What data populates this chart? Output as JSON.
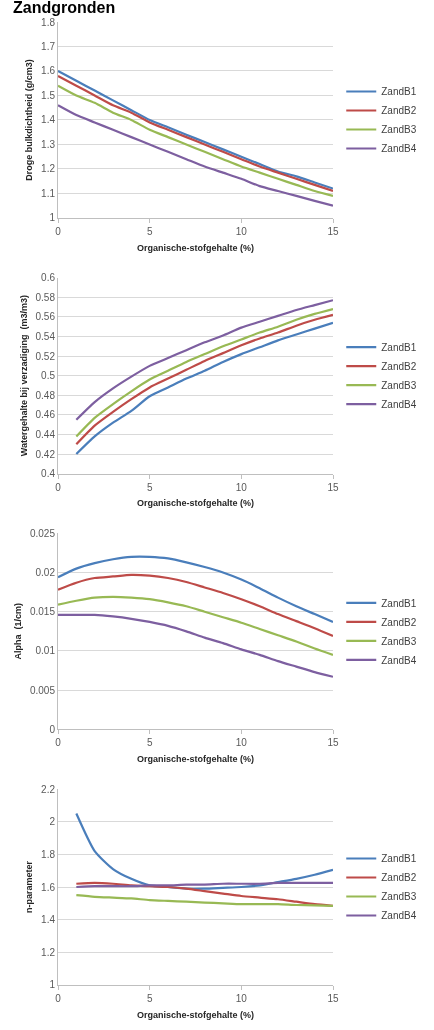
{
  "chart_data": [
    {
      "type": "line",
      "title": "Zandgronden",
      "xlabel": "Organische-stofgehalte (%)",
      "ylabel": "Droge bulkdichtheid (g/cm3)",
      "x": [
        0,
        1,
        2,
        3,
        4,
        5,
        6,
        7,
        8,
        9,
        10,
        11,
        12,
        13,
        14,
        15
      ],
      "xlim": [
        0,
        15
      ],
      "xticks": [
        0,
        5,
        10,
        15
      ],
      "ylim": [
        1,
        1.8
      ],
      "yticks": [
        1,
        1.1,
        1.2,
        1.3,
        1.4,
        1.5,
        1.6,
        1.7,
        1.8
      ],
      "grid": "y",
      "legend": "right",
      "series": [
        {
          "name": "ZandB1",
          "color": "#4a7ebb",
          "values": [
            1.6,
            1.56,
            1.52,
            1.48,
            1.44,
            1.4,
            1.37,
            1.34,
            1.31,
            1.28,
            1.25,
            1.22,
            1.19,
            1.17,
            1.145,
            1.12
          ]
        },
        {
          "name": "ZandB2",
          "color": "#be4b48",
          "values": [
            1.58,
            1.54,
            1.5,
            1.46,
            1.43,
            1.39,
            1.36,
            1.33,
            1.3,
            1.27,
            1.24,
            1.21,
            1.185,
            1.16,
            1.135,
            1.11
          ]
        },
        {
          "name": "ZandB3",
          "color": "#98b954",
          "values": [
            1.54,
            1.5,
            1.47,
            1.43,
            1.4,
            1.36,
            1.33,
            1.3,
            1.27,
            1.24,
            1.21,
            1.185,
            1.16,
            1.135,
            1.11,
            1.09
          ]
        },
        {
          "name": "ZandB4",
          "color": "#7d5fa0",
          "values": [
            1.46,
            1.42,
            1.39,
            1.36,
            1.33,
            1.3,
            1.27,
            1.24,
            1.21,
            1.185,
            1.16,
            1.13,
            1.11,
            1.09,
            1.07,
            1.05
          ]
        }
      ]
    },
    {
      "type": "line",
      "xlabel": "Organische-stofgehalte (%)",
      "ylabel": "Watergehalte bij verzadiging  (m3/m3)",
      "x": [
        1,
        2,
        3,
        4,
        5,
        6,
        7,
        8,
        9,
        10,
        11,
        12,
        13,
        14,
        15
      ],
      "xlim": [
        0,
        15
      ],
      "xticks": [
        0,
        5,
        10,
        15
      ],
      "ylim": [
        0.4,
        0.6
      ],
      "yticks": [
        0.4,
        0.42,
        0.44,
        0.46,
        0.48,
        0.5,
        0.52,
        0.54,
        0.56,
        0.58,
        0.6
      ],
      "grid": "y",
      "legend": "right",
      "series": [
        {
          "name": "ZandB1",
          "color": "#4a7ebb",
          "values": [
            0.42,
            0.438,
            0.452,
            0.464,
            0.479,
            0.488,
            0.497,
            0.505,
            0.514,
            0.522,
            0.529,
            0.536,
            0.542,
            0.548,
            0.554
          ]
        },
        {
          "name": "ZandB2",
          "color": "#be4b48",
          "values": [
            0.43,
            0.449,
            0.463,
            0.476,
            0.488,
            0.497,
            0.506,
            0.515,
            0.523,
            0.531,
            0.538,
            0.544,
            0.551,
            0.557,
            0.562
          ]
        },
        {
          "name": "ZandB3",
          "color": "#98b954",
          "values": [
            0.438,
            0.457,
            0.471,
            0.484,
            0.496,
            0.505,
            0.514,
            0.522,
            0.53,
            0.537,
            0.544,
            0.55,
            0.557,
            0.563,
            0.568
          ]
        },
        {
          "name": "ZandB4",
          "color": "#7d5fa0",
          "values": [
            0.455,
            0.473,
            0.487,
            0.499,
            0.51,
            0.518,
            0.526,
            0.534,
            0.541,
            0.549,
            0.555,
            0.561,
            0.567,
            0.572,
            0.577
          ]
        }
      ]
    },
    {
      "type": "line",
      "xlabel": "Organische-stofgehalte (%)",
      "ylabel": "Alpha  (1/cm)",
      "x": [
        0,
        1,
        2,
        3,
        4,
        5,
        6,
        7,
        8,
        9,
        10,
        11,
        12,
        13,
        14,
        15
      ],
      "xlim": [
        0,
        15
      ],
      "xticks": [
        0,
        5,
        10,
        15
      ],
      "ylim": [
        0,
        0.025
      ],
      "yticks": [
        0,
        0.005,
        0.01,
        0.015,
        0.02,
        0.025
      ],
      "grid": "y",
      "legend": "right",
      "series": [
        {
          "name": "ZandB1",
          "color": "#4a7ebb",
          "values": [
            0.0194,
            0.0205,
            0.0212,
            0.0217,
            0.022,
            0.022,
            0.0218,
            0.0213,
            0.0207,
            0.02,
            0.0191,
            0.018,
            0.0168,
            0.0157,
            0.0147,
            0.0137
          ]
        },
        {
          "name": "ZandB2",
          "color": "#be4b48",
          "values": [
            0.0178,
            0.0187,
            0.0193,
            0.0195,
            0.0197,
            0.0196,
            0.0193,
            0.0188,
            0.0181,
            0.0174,
            0.0166,
            0.0157,
            0.0147,
            0.0138,
            0.0129,
            0.0119
          ]
        },
        {
          "name": "ZandB3",
          "color": "#98b954",
          "values": [
            0.0159,
            0.0164,
            0.0168,
            0.0169,
            0.0168,
            0.0166,
            0.0162,
            0.0157,
            0.015,
            0.0143,
            0.0136,
            0.0128,
            0.012,
            0.0112,
            0.0103,
            0.0095
          ]
        },
        {
          "name": "ZandB4",
          "color": "#7d5fa0",
          "values": [
            0.0146,
            0.0146,
            0.0146,
            0.0144,
            0.0141,
            0.0137,
            0.0132,
            0.0125,
            0.0117,
            0.011,
            0.0102,
            0.0095,
            0.0087,
            0.008,
            0.0073,
            0.0067
          ]
        }
      ]
    },
    {
      "type": "line",
      "xlabel": "Organische-stofgehalte (%)",
      "ylabel": "n-parameter",
      "x": [
        1,
        2,
        3,
        4,
        5,
        6,
        7,
        8,
        9,
        10,
        11,
        12,
        13,
        14,
        15
      ],
      "xlim": [
        0,
        15
      ],
      "xticks": [
        0,
        5,
        10,
        15
      ],
      "ylim": [
        1,
        2.2
      ],
      "yticks": [
        1,
        1.2,
        1.4,
        1.6,
        1.8,
        2,
        2.2
      ],
      "grid": "y",
      "legend": "right",
      "series": [
        {
          "name": "ZandB1",
          "color": "#4a7ebb",
          "values": [
            2.05,
            1.82,
            1.71,
            1.65,
            1.61,
            1.6,
            1.59,
            1.59,
            1.595,
            1.6,
            1.61,
            1.63,
            1.65,
            1.675,
            1.705
          ]
        },
        {
          "name": "ZandB2",
          "color": "#be4b48",
          "values": [
            1.62,
            1.625,
            1.62,
            1.61,
            1.605,
            1.6,
            1.59,
            1.575,
            1.56,
            1.545,
            1.535,
            1.525,
            1.51,
            1.495,
            1.485
          ]
        },
        {
          "name": "ZandB3",
          "color": "#98b954",
          "values": [
            1.55,
            1.54,
            1.535,
            1.53,
            1.52,
            1.515,
            1.51,
            1.505,
            1.5,
            1.495,
            1.495,
            1.495,
            1.49,
            1.488,
            1.485
          ]
        },
        {
          "name": "ZandB4",
          "color": "#7d5fa0",
          "values": [
            1.6,
            1.605,
            1.605,
            1.605,
            1.61,
            1.61,
            1.615,
            1.615,
            1.62,
            1.62,
            1.62,
            1.625,
            1.625,
            1.625,
            1.625
          ]
        }
      ]
    }
  ]
}
